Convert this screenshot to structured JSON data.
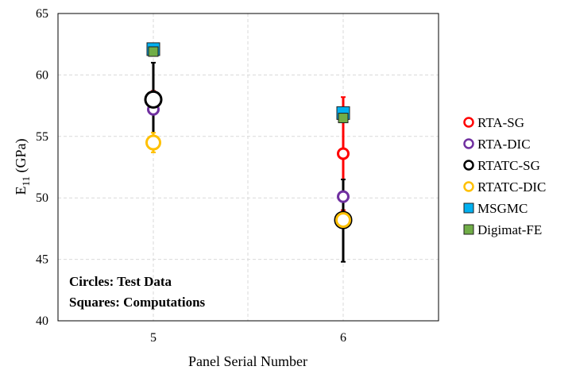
{
  "chart_data": {
    "type": "scatter",
    "xlabel": "Panel Serial Number",
    "ylabel_main": "E",
    "ylabel_sub": "11",
    "ylabel_rest": " (GPa)",
    "categories": [
      "5",
      "6"
    ],
    "ylim": [
      40,
      65
    ],
    "yticks": [
      "40",
      "45",
      "50",
      "55",
      "60",
      "65"
    ],
    "grid": true,
    "legend_position": "right",
    "series": [
      {
        "name": "RTA-SG",
        "marker": "circle",
        "color": "#ff0000",
        "points": [
          {
            "x": "5",
            "y": 57.8,
            "err_low": 56.9,
            "err_high": 58.7
          },
          {
            "x": "6",
            "y": 53.6,
            "err_low": 49.0,
            "err_high": 58.2
          }
        ]
      },
      {
        "name": "RTA-DIC",
        "marker": "circle",
        "color": "#7030a0",
        "points": [
          {
            "x": "5",
            "y": 57.2,
            "err_low": 56.8,
            "err_high": 57.6
          },
          {
            "x": "6",
            "y": 50.1,
            "err_low": 49.7,
            "err_high": 50.5
          }
        ]
      },
      {
        "name": "RTATC-SG",
        "marker": "circle",
        "color": "#000000",
        "points": [
          {
            "x": "5",
            "y": 58.0,
            "err_low": 55.0,
            "err_high": 61.0
          },
          {
            "x": "6",
            "y": 48.2,
            "err_low": 44.8,
            "err_high": 51.5
          }
        ]
      },
      {
        "name": "RTATC-DIC",
        "marker": "circle",
        "color": "#ffc000",
        "points": [
          {
            "x": "5",
            "y": 54.5,
            "err_low": 53.7,
            "err_high": 55.3
          },
          {
            "x": "6",
            "y": 48.2,
            "err_low": 47.8,
            "err_high": 48.6
          }
        ]
      },
      {
        "name": "MSGMC",
        "marker": "square",
        "color": "#00b0f0",
        "points": [
          {
            "x": "5",
            "y": 62.1
          },
          {
            "x": "6",
            "y": 56.9
          }
        ]
      },
      {
        "name": "Digimat-FE",
        "marker": "square",
        "color": "#70ad47",
        "points": [
          {
            "x": "5",
            "y": 61.9
          },
          {
            "x": "6",
            "y": 56.5
          }
        ]
      }
    ],
    "annotations": [
      "Circles: Test Data",
      "Squares: Computations"
    ]
  }
}
